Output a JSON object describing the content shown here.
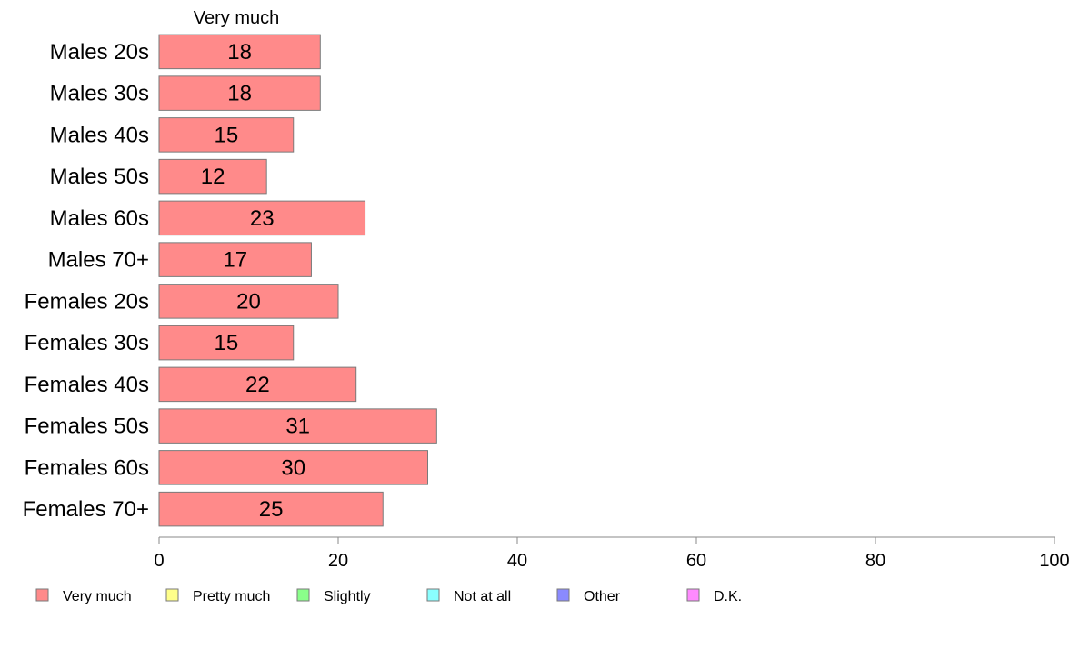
{
  "chart_data": {
    "type": "bar",
    "orientation": "horizontal",
    "stacked": true,
    "top_label": "Very much",
    "categories": [
      "Males 20s",
      "Males 30s",
      "Males 40s",
      "Males 50s",
      "Males 60s",
      "Males 70+",
      "Females 20s",
      "Females 30s",
      "Females 40s",
      "Females 50s",
      "Females 60s",
      "Females 70+"
    ],
    "series": [
      {
        "name": "Very much",
        "color": "#ff8a8a",
        "values": [
          18,
          18,
          15,
          12,
          23,
          17,
          20,
          15,
          22,
          31,
          30,
          25
        ]
      }
    ],
    "xlim": [
      0,
      100
    ],
    "xticks": [
      0,
      20,
      40,
      60,
      80,
      100
    ],
    "grid": false,
    "legend_position": "bottom",
    "legend": [
      {
        "label": "Very much",
        "color": "#ff8a8a"
      },
      {
        "label": "Pretty much",
        "color": "#ffff8a"
      },
      {
        "label": "Slightly",
        "color": "#8aff8a"
      },
      {
        "label": "Not at all",
        "color": "#8affff"
      },
      {
        "label": "Other",
        "color": "#8a8aff"
      },
      {
        "label": "D.K.",
        "color": "#ff8aff"
      }
    ]
  }
}
